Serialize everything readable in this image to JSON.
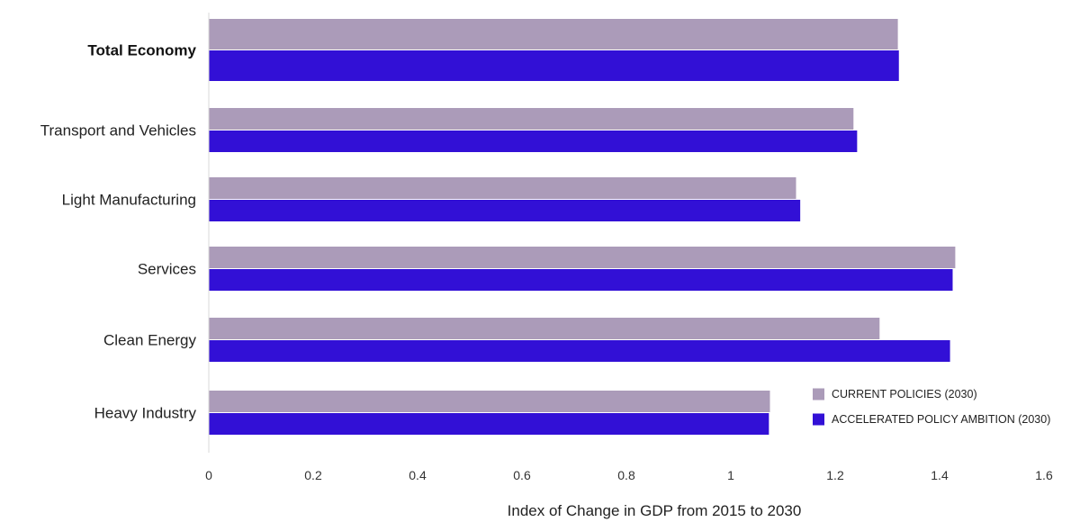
{
  "chart_data": {
    "type": "bar",
    "orientation": "horizontal",
    "title": "",
    "categories": [
      "Total Economy",
      "Transport and Vehicles",
      "Light Manufacturing",
      "Services",
      "Clean Energy",
      "Heavy Industry"
    ],
    "series": [
      {
        "name": "CURRENT POLICIES (2030)",
        "color": "#ab9bb9",
        "values": [
          1.32,
          1.235,
          1.125,
          1.43,
          1.285,
          1.075
        ]
      },
      {
        "name": "ACCELERATED POLICY AMBITION (2030)",
        "color": "#3210d6",
        "values": [
          1.322,
          1.242,
          1.133,
          1.425,
          1.42,
          1.073
        ]
      }
    ],
    "xlabel": "Index of Change in GDP from 2015 to 2030",
    "ylabel": "",
    "xlim": [
      0,
      1.6
    ],
    "xticks": [
      0,
      0.2,
      0.4,
      0.6,
      0.8,
      1,
      1.2,
      1.4,
      1.6
    ],
    "xtick_labels": [
      "0",
      "0.2",
      "0.4",
      "0.6",
      "0.8",
      "1",
      "1.2",
      "1.4",
      "1.6"
    ],
    "grid": false,
    "legend_position": "bottom-right"
  }
}
